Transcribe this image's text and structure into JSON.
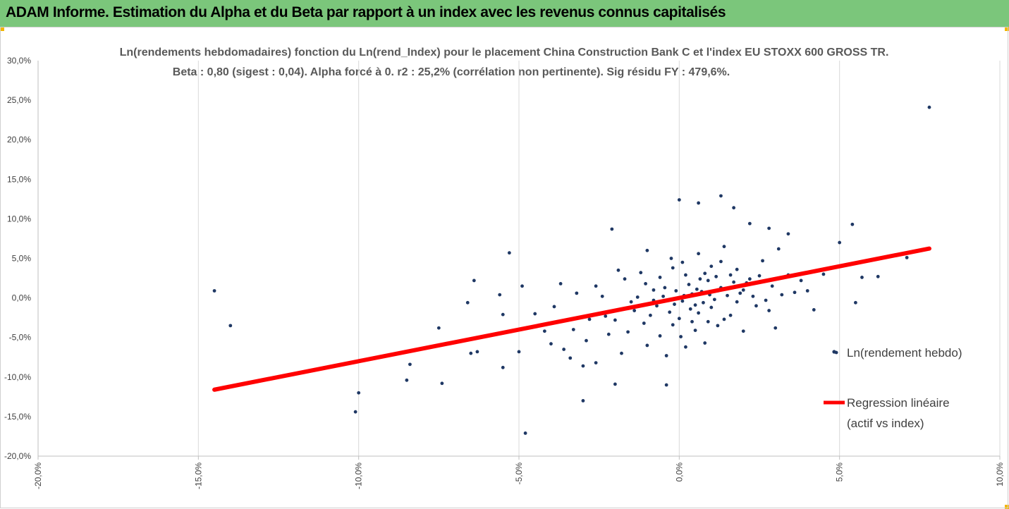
{
  "banner": {
    "title": "ADAM Informe. Estimation du Alpha et du Beta par rapport à un index avec les revenus connus capitalisés"
  },
  "colors": {
    "banner": "#7bc67b",
    "points": "#1f3864",
    "regression": "#ff0000",
    "grid": "#d9d9d9",
    "corner": "#f2b600"
  },
  "chart_data": {
    "type": "scatter",
    "title_line1": "Ln(rendements hebdomadaires) fonction du Ln(rend_Index)  pour le placement China Construction Bank C et l'index EU STOXX 600 GROSS TR.",
    "title_line2": "Beta : 0,80 (sigest : 0,04).  Alpha forcé à 0. r2 : 25,2% (corrélation non pertinente). Sig résidu FY : 479,6%.",
    "xlim": [
      -20,
      10
    ],
    "ylim": [
      -20,
      30
    ],
    "x_ticks": [
      "-20,0%",
      "-15,0%",
      "-10,0%",
      "-5,0%",
      "0,0%",
      "5,0%",
      "10,0%"
    ],
    "y_ticks": [
      "30,0%",
      "25,0%",
      "20,0%",
      "15,0%",
      "10,0%",
      "5,0%",
      "0,0%",
      "-5,0%",
      "-10,0%",
      "-15,0%",
      "-20,0%"
    ],
    "grid": "vertical",
    "legend": [
      {
        "label": "Ln(rendement hebdo)",
        "kind": "marker"
      },
      {
        "label": "Regression linéaire",
        "label2": "(actif vs index)",
        "kind": "line"
      }
    ],
    "regression": {
      "slope": 0.8,
      "intercept": 0,
      "x_range": [
        -14.5,
        7.8
      ]
    },
    "series": [
      {
        "name": "Ln(rendement hebdo)",
        "points": [
          [
            -14.5,
            0.9
          ],
          [
            -14.0,
            -3.5
          ],
          [
            -10.0,
            -12.0
          ],
          [
            -10.1,
            -14.4
          ],
          [
            -8.4,
            -8.4
          ],
          [
            -8.5,
            -10.4
          ],
          [
            -7.5,
            -3.8
          ],
          [
            -7.4,
            -10.8
          ],
          [
            -6.4,
            2.2
          ],
          [
            -6.5,
            -7.0
          ],
          [
            -6.6,
            -0.6
          ],
          [
            -6.3,
            -6.8
          ],
          [
            -5.3,
            5.7
          ],
          [
            -5.5,
            -8.8
          ],
          [
            -5.6,
            0.4
          ],
          [
            -5.5,
            -2.1
          ],
          [
            -4.8,
            -17.1
          ],
          [
            -4.9,
            1.5
          ],
          [
            -5.0,
            -6.8
          ],
          [
            -4.5,
            -2.0
          ],
          [
            -3.0,
            -13.0
          ],
          [
            -2.0,
            -10.9
          ],
          [
            -2.1,
            8.7
          ],
          [
            -1.9,
            3.5
          ],
          [
            -1.0,
            6.0
          ],
          [
            -0.4,
            -11.0
          ],
          [
            0.0,
            12.4
          ],
          [
            0.6,
            12.0
          ],
          [
            1.3,
            12.9
          ],
          [
            1.7,
            11.4
          ],
          [
            2.2,
            9.4
          ],
          [
            2.8,
            8.8
          ],
          [
            3.4,
            8.1
          ],
          [
            5.4,
            9.3
          ],
          [
            5.0,
            7.0
          ],
          [
            4.5,
            3.0
          ],
          [
            4.9,
            -6.9
          ],
          [
            5.5,
            -0.6
          ],
          [
            5.7,
            2.6
          ],
          [
            6.2,
            2.7
          ],
          [
            7.1,
            5.1
          ],
          [
            7.8,
            24.1
          ],
          [
            3.8,
            2.2
          ],
          [
            4.0,
            0.9
          ],
          [
            4.2,
            -1.5
          ],
          [
            3.6,
            0.7
          ],
          [
            3.1,
            6.2
          ],
          [
            3.0,
            -3.8
          ],
          [
            -4.2,
            -4.2
          ],
          [
            -4.0,
            -5.8
          ],
          [
            -3.6,
            -6.5
          ],
          [
            -3.4,
            -7.6
          ],
          [
            -3.0,
            -8.6
          ],
          [
            -2.6,
            -8.2
          ],
          [
            -3.9,
            -1.1
          ],
          [
            -3.7,
            1.8
          ],
          [
            -3.2,
            0.6
          ],
          [
            -2.9,
            -5.4
          ],
          [
            -2.6,
            1.5
          ],
          [
            -2.3,
            -2.3
          ],
          [
            -2.0,
            -2.8
          ],
          [
            -1.8,
            -7.0
          ],
          [
            -1.6,
            -4.3
          ],
          [
            -1.4,
            -1.6
          ],
          [
            -1.2,
            3.2
          ],
          [
            -1.0,
            -6.0
          ],
          [
            -0.8,
            1.0
          ],
          [
            -0.6,
            -4.8
          ],
          [
            -0.4,
            -7.3
          ],
          [
            -0.2,
            3.8
          ],
          [
            0.2,
            -6.2
          ],
          [
            0.4,
            -3.0
          ],
          [
            0.6,
            5.6
          ],
          [
            0.8,
            -5.7
          ],
          [
            1.0,
            4.0
          ],
          [
            1.2,
            -3.5
          ],
          [
            1.4,
            6.5
          ],
          [
            1.6,
            -2.2
          ],
          [
            1.8,
            3.6
          ],
          [
            2.0,
            -4.2
          ],
          [
            2.2,
            2.4
          ],
          [
            2.4,
            -1.0
          ],
          [
            2.6,
            4.7
          ],
          [
            2.8,
            -1.6
          ],
          [
            -0.9,
            -2.2
          ],
          [
            -0.7,
            -1.0
          ],
          [
            -0.5,
            0.2
          ],
          [
            -0.3,
            -1.8
          ],
          [
            -0.1,
            0.9
          ],
          [
            0.1,
            -0.4
          ],
          [
            0.3,
            1.7
          ],
          [
            0.5,
            -0.9
          ],
          [
            0.7,
            0.8
          ],
          [
            0.9,
            2.2
          ],
          [
            1.1,
            -0.2
          ],
          [
            1.3,
            1.3
          ],
          [
            1.5,
            0.3
          ],
          [
            1.7,
            2.0
          ],
          [
            1.9,
            0.6
          ],
          [
            2.1,
            1.9
          ],
          [
            -1.3,
            0.1
          ],
          [
            -1.1,
            -3.2
          ],
          [
            -0.8,
            -0.3
          ],
          [
            0.0,
            -2.6
          ],
          [
            0.2,
            2.9
          ],
          [
            0.4,
            0.5
          ],
          [
            0.6,
            -1.9
          ],
          [
            0.8,
            3.1
          ],
          [
            1.0,
            -1.2
          ],
          [
            1.2,
            0.9
          ],
          [
            1.4,
            -2.7
          ],
          [
            1.6,
            2.9
          ],
          [
            1.8,
            -0.5
          ],
          [
            2.0,
            1.0
          ],
          [
            -1.5,
            -0.5
          ],
          [
            -1.7,
            2.4
          ],
          [
            -2.2,
            -4.6
          ],
          [
            -2.4,
            0.2
          ],
          [
            -2.8,
            -2.7
          ],
          [
            -3.3,
            -4.0
          ],
          [
            -0.6,
            2.6
          ],
          [
            -0.2,
            -3.4
          ],
          [
            0.1,
            4.5
          ],
          [
            0.5,
            -4.1
          ],
          [
            0.9,
            -3.0
          ],
          [
            1.3,
            4.6
          ],
          [
            2.3,
            0.2
          ],
          [
            2.5,
            2.8
          ],
          [
            2.7,
            -0.3
          ],
          [
            2.9,
            1.5
          ],
          [
            3.2,
            0.4
          ],
          [
            3.4,
            2.9
          ],
          [
            -0.45,
            1.3
          ],
          [
            -0.15,
            -0.8
          ],
          [
            0.15,
            0.3
          ],
          [
            0.35,
            -1.4
          ],
          [
            0.55,
            1.1
          ],
          [
            0.75,
            -0.6
          ],
          [
            0.95,
            0.4
          ],
          [
            1.15,
            2.7
          ],
          [
            -1.05,
            1.8
          ],
          [
            -0.25,
            5.0
          ],
          [
            0.05,
            -4.9
          ],
          [
            0.65,
            2.4
          ]
        ]
      }
    ]
  }
}
